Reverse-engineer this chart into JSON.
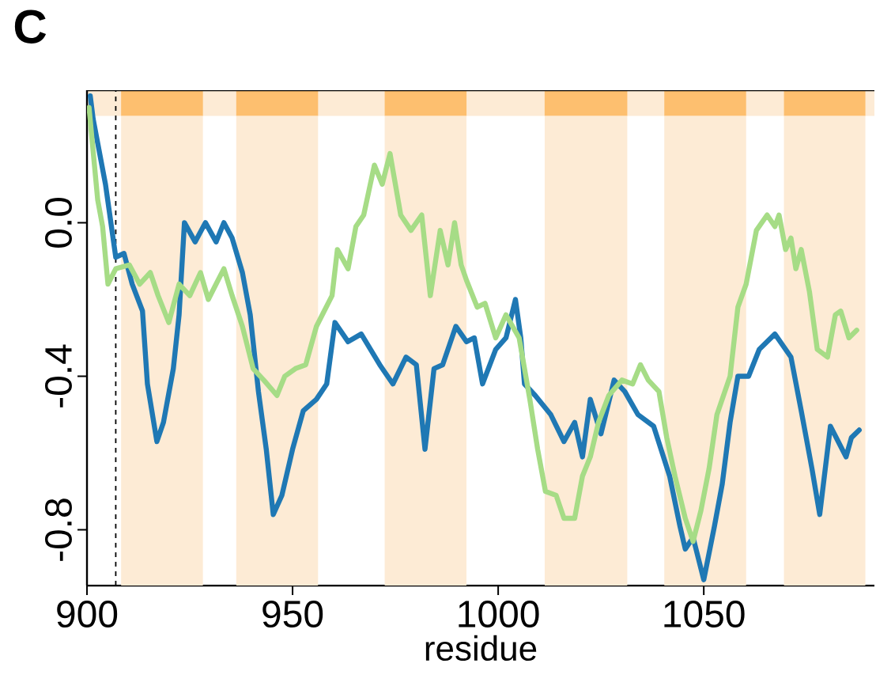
{
  "chart_data": {
    "type": "line",
    "title": "C",
    "xlabel": "residue",
    "xlim": [
      900,
      1091.5
    ],
    "ylim": [
      -0.945,
      0.345
    ],
    "xticks": [
      900,
      950,
      1000,
      1050
    ],
    "yticks": [
      {
        "value": -0.8,
        "label": "-0.8"
      },
      {
        "value": -0.4,
        "label": "-0.4"
      },
      {
        "value": 0,
        "label": "0.0"
      }
    ],
    "grid": false,
    "line_style": "solid",
    "marker": "none",
    "ref_lines": [
      {
        "axis": "x",
        "value": 907,
        "color": "#000000",
        "line_style": "dashed"
      }
    ],
    "bands": [
      {
        "axis": "x",
        "from": 908.3,
        "to": 928.2,
        "color": "#fdebd5"
      },
      {
        "axis": "x",
        "from": 936.3,
        "to": 956.2,
        "color": "#fdebd5"
      },
      {
        "axis": "x",
        "from": 972.4,
        "to": 992.3,
        "color": "#fdebd5"
      },
      {
        "axis": "x",
        "from": 1011.3,
        "to": 1031.4,
        "color": "#fdebd5"
      },
      {
        "axis": "x",
        "from": 1040.4,
        "to": 1060.3,
        "color": "#fdebd5"
      },
      {
        "axis": "x",
        "from": 1069.5,
        "to": 1089.3,
        "color": "#fdebd5"
      }
    ],
    "series": [
      {
        "color": "#1f78b4",
        "x": [
          900.8,
          901.5,
          904.5,
          907,
          909,
          911,
          913.5,
          914.7,
          917,
          918.6,
          921,
          922.4,
          923.7,
          926.3,
          928.8,
          931.4,
          933.3,
          935.3,
          937.8,
          939.7,
          941.7,
          943.6,
          945.3,
          947.4,
          950,
          952.6,
          955.8,
          958.3,
          960.3,
          963.5,
          966.7,
          971.2,
          974.4,
          977.6,
          980.1,
          982.2,
          984.4,
          986.5,
          989.7,
          992.3,
          994.2,
          996.2,
          999.4,
          1001.9,
          1004.2,
          1005.5,
          1006.4,
          1009,
          1012.8,
          1016,
          1018.6,
          1020.5,
          1022.4,
          1025,
          1028.2,
          1030.8,
          1034,
          1037.8,
          1041.7,
          1044.2,
          1045.5,
          1047.4,
          1050,
          1052.6,
          1054.5,
          1056.4,
          1058.3,
          1060.9,
          1063.5,
          1067.3,
          1071.2,
          1073.7,
          1076.3,
          1078.2,
          1080.8,
          1082.7,
          1084.6,
          1085.9,
          1087.8
        ],
        "values": [
          0.33,
          0.27,
          0.1,
          -0.09,
          -0.08,
          -0.16,
          -0.23,
          -0.42,
          -0.57,
          -0.52,
          -0.38,
          -0.24,
          0.0,
          -0.05,
          0.0,
          -0.05,
          0.0,
          -0.04,
          -0.13,
          -0.24,
          -0.44,
          -0.59,
          -0.76,
          -0.71,
          -0.59,
          -0.49,
          -0.46,
          -0.42,
          -0.26,
          -0.31,
          -0.29,
          -0.37,
          -0.42,
          -0.35,
          -0.37,
          -0.59,
          -0.38,
          -0.37,
          -0.27,
          -0.31,
          -0.3,
          -0.42,
          -0.33,
          -0.3,
          -0.2,
          -0.3,
          -0.42,
          -0.45,
          -0.5,
          -0.57,
          -0.52,
          -0.61,
          -0.46,
          -0.55,
          -0.41,
          -0.44,
          -0.5,
          -0.53,
          -0.66,
          -0.79,
          -0.85,
          -0.82,
          -0.93,
          -0.79,
          -0.68,
          -0.52,
          -0.4,
          -0.4,
          -0.33,
          -0.29,
          -0.35,
          -0.49,
          -0.64,
          -0.76,
          -0.53,
          -0.57,
          -0.61,
          -0.56,
          -0.54
        ]
      },
      {
        "color": "#a6dc86",
        "x": [
          900.5,
          902.6,
          903.8,
          905.1,
          907,
          910.3,
          912.8,
          915.4,
          917.3,
          919.9,
          922.4,
          925,
          927.6,
          929.5,
          931.4,
          933.3,
          935.3,
          937.8,
          940.4,
          943,
          946.2,
          948.1,
          950.7,
          953.2,
          955.8,
          957.7,
          959.6,
          960.9,
          963.5,
          965.4,
          967.3,
          969.9,
          971.8,
          973.7,
          976.3,
          978.8,
          981.4,
          983.5,
          985.9,
          987.8,
          989.4,
          991,
          992.3,
          994.9,
          996.8,
          999.4,
          1001.9,
          1005.1,
          1007.7,
          1009.6,
          1011.5,
          1014.1,
          1016,
          1018.6,
          1020.5,
          1022.4,
          1024.4,
          1026.9,
          1030.1,
          1032.7,
          1034.6,
          1036.5,
          1039.1,
          1041,
          1043,
          1045.5,
          1047.4,
          1049.3,
          1051.3,
          1053.2,
          1056.4,
          1058.3,
          1060.3,
          1062.8,
          1065.4,
          1067.3,
          1068.3,
          1069.9,
          1071.2,
          1072.4,
          1073.7,
          1075.7,
          1077.6,
          1080.1,
          1082,
          1083.3,
          1085.3,
          1087.2
        ],
        "values": [
          0.3,
          0.06,
          -0.01,
          -0.16,
          -0.12,
          -0.11,
          -0.16,
          -0.13,
          -0.19,
          -0.26,
          -0.16,
          -0.19,
          -0.13,
          -0.2,
          -0.16,
          -0.12,
          -0.19,
          -0.27,
          -0.38,
          -0.41,
          -0.45,
          -0.4,
          -0.38,
          -0.37,
          -0.27,
          -0.23,
          -0.19,
          -0.07,
          -0.12,
          -0.01,
          0.02,
          0.15,
          0.1,
          0.18,
          0.02,
          -0.02,
          0.02,
          -0.19,
          -0.02,
          -0.11,
          0.0,
          -0.11,
          -0.15,
          -0.22,
          -0.21,
          -0.3,
          -0.24,
          -0.3,
          -0.46,
          -0.59,
          -0.7,
          -0.71,
          -0.77,
          -0.77,
          -0.66,
          -0.61,
          -0.52,
          -0.45,
          -0.41,
          -0.42,
          -0.37,
          -0.41,
          -0.44,
          -0.56,
          -0.66,
          -0.77,
          -0.83,
          -0.75,
          -0.64,
          -0.5,
          -0.4,
          -0.22,
          -0.16,
          -0.02,
          0.02,
          -0.01,
          0.02,
          -0.07,
          -0.04,
          -0.12,
          -0.07,
          -0.18,
          -0.33,
          -0.35,
          -0.24,
          -0.23,
          -0.3,
          -0.28
        ]
      }
    ]
  }
}
